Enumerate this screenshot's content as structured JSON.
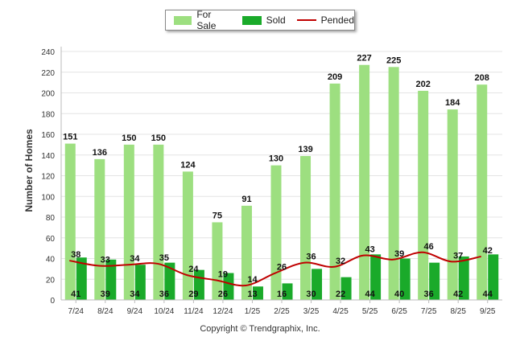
{
  "chart_data": {
    "type": "bar",
    "ylabel": "Number of Homes",
    "ylim": [
      0,
      240
    ],
    "yticks": [
      0,
      20,
      40,
      60,
      80,
      100,
      120,
      140,
      160,
      180,
      200,
      220,
      240
    ],
    "categories": [
      "7/24",
      "8/24",
      "9/24",
      "10/24",
      "11/24",
      "12/24",
      "1/25",
      "2/25",
      "3/25",
      "4/25",
      "5/25",
      "6/25",
      "7/25",
      "8/25",
      "9/25"
    ],
    "series": [
      {
        "name": "For Sale",
        "kind": "bar",
        "color": "#9ddf80",
        "values": [
          151,
          136,
          150,
          150,
          124,
          75,
          91,
          130,
          139,
          209,
          227,
          225,
          202,
          184,
          208
        ]
      },
      {
        "name": "Sold",
        "kind": "bar",
        "color": "#1aaa2a",
        "values": [
          41,
          39,
          34,
          36,
          29,
          26,
          13,
          16,
          30,
          22,
          44,
          40,
          36,
          42,
          44
        ]
      },
      {
        "name": "Pended",
        "kind": "line",
        "color": "#c00000",
        "values": [
          38,
          33,
          34,
          35,
          24,
          19,
          14,
          26,
          36,
          32,
          43,
          39,
          46,
          37,
          42
        ]
      }
    ]
  },
  "legend": {
    "for_sale": "For Sale",
    "sold": "Sold",
    "pended": "Pended"
  },
  "footer": {
    "copyright": "Copyright © Trendgraphix, Inc."
  }
}
